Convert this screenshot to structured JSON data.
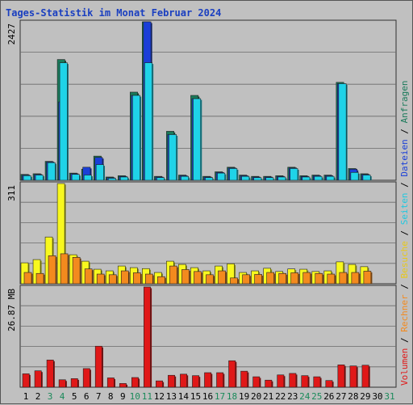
{
  "title": "Tages-Statistik im Monat Februar 2024",
  "colors": {
    "background": "#c0c0c0",
    "title": "#1a3fc0",
    "anfragen": "#1a7a5a",
    "dateien": "#1a3fd8",
    "seiten": "#1fd3e8",
    "besuche": "#f8f81e",
    "rechner": "#f38a1e",
    "volumen": "#e01818",
    "weekend_day": "#1a8a5a",
    "weekday": "#000000",
    "grid": "#6a6a6a"
  },
  "side_legend": [
    {
      "text": "Volumen",
      "color": "#e01818"
    },
    {
      "text": " / ",
      "color": "#000000"
    },
    {
      "text": "Rechner",
      "color": "#f38a1e"
    },
    {
      "text": " / ",
      "color": "#000000"
    },
    {
      "text": "Besuche",
      "color": "#e8c818"
    },
    {
      "text": " / ",
      "color": "#000000"
    },
    {
      "text": "Seiten",
      "color": "#1fc8e0"
    },
    {
      "text": " / ",
      "color": "#000000"
    },
    {
      "text": "Dateien",
      "color": "#1a3fd8"
    },
    {
      "text": " / ",
      "color": "#000000"
    },
    {
      "text": "Anfragen",
      "color": "#1a7a5a"
    }
  ],
  "chart_data": [
    {
      "type": "bar",
      "panel": "top",
      "ylabel": "2427",
      "ymax": 2427,
      "categories": [
        "1",
        "2",
        "3",
        "4",
        "5",
        "6",
        "7",
        "8",
        "9",
        "10",
        "11",
        "12",
        "13",
        "14",
        "15",
        "16",
        "17",
        "18",
        "19",
        "20",
        "21",
        "22",
        "23",
        "24",
        "25",
        "26",
        "27",
        "28",
        "29",
        "30",
        "31"
      ],
      "weekend": [
        3,
        4,
        10,
        11,
        17,
        18,
        24,
        25,
        31
      ],
      "series": [
        {
          "name": "Anfragen",
          "values": [
            90,
            100,
            290,
            1850,
            110,
            170,
            370,
            50,
            70,
            1350,
            2427,
            60,
            750,
            80,
            1300,
            60,
            130,
            200,
            80,
            60,
            60,
            70,
            200,
            70,
            80,
            80,
            1500,
            180,
            100,
            0,
            0
          ]
        },
        {
          "name": "Dateien",
          "values": [
            80,
            90,
            280,
            1200,
            100,
            200,
            350,
            40,
            60,
            1300,
            2427,
            50,
            700,
            70,
            1250,
            50,
            120,
            190,
            70,
            50,
            50,
            60,
            190,
            60,
            70,
            70,
            1480,
            170,
            90,
            0,
            0
          ]
        },
        {
          "name": "Seiten",
          "values": [
            70,
            80,
            270,
            1800,
            90,
            80,
            240,
            30,
            50,
            1300,
            1800,
            40,
            700,
            60,
            1250,
            40,
            110,
            180,
            60,
            40,
            40,
            50,
            180,
            50,
            60,
            60,
            1480,
            120,
            80,
            0,
            0
          ]
        }
      ]
    },
    {
      "type": "bar",
      "panel": "middle",
      "ylabel": "311",
      "ymax": 311,
      "categories": [
        "1",
        "2",
        "3",
        "4",
        "5",
        "6",
        "7",
        "8",
        "9",
        "10",
        "11",
        "12",
        "13",
        "14",
        "15",
        "16",
        "17",
        "18",
        "19",
        "20",
        "21",
        "22",
        "23",
        "24",
        "25",
        "26",
        "27",
        "28",
        "29",
        "30",
        "31"
      ],
      "series": [
        {
          "name": "Besuche",
          "values": [
            65,
            75,
            145,
            311,
            90,
            70,
            45,
            40,
            55,
            50,
            47,
            35,
            70,
            60,
            50,
            40,
            55,
            62,
            35,
            40,
            48,
            38,
            46,
            45,
            38,
            40,
            68,
            60,
            53,
            0,
            0
          ]
        },
        {
          "name": "Rechner",
          "values": [
            35,
            32,
            87,
            93,
            82,
            46,
            30,
            28,
            40,
            34,
            30,
            22,
            55,
            44,
            38,
            28,
            40,
            18,
            28,
            29,
            35,
            32,
            34,
            35,
            32,
            30,
            35,
            35,
            39,
            0,
            0
          ]
        }
      ]
    },
    {
      "type": "bar",
      "panel": "bottom",
      "ylabel": "26.87 MB",
      "ymax": 26.87,
      "categories": [
        "1",
        "2",
        "3",
        "4",
        "5",
        "6",
        "7",
        "8",
        "9",
        "10",
        "11",
        "12",
        "13",
        "14",
        "15",
        "16",
        "17",
        "18",
        "19",
        "20",
        "21",
        "22",
        "23",
        "24",
        "25",
        "26",
        "27",
        "28",
        "29",
        "30",
        "31"
      ],
      "series": [
        {
          "name": "Volumen",
          "values": [
            3.6,
            4.4,
            7.3,
            2.0,
            2.3,
            5.0,
            11.0,
            2.5,
            1.0,
            2.6,
            26.87,
            1.7,
            3.2,
            3.5,
            3.1,
            3.9,
            3.9,
            7.1,
            4.3,
            2.8,
            1.9,
            3.3,
            3.7,
            3.1,
            2.8,
            1.8,
            6.0,
            5.7,
            5.9,
            0,
            0
          ]
        }
      ]
    }
  ]
}
